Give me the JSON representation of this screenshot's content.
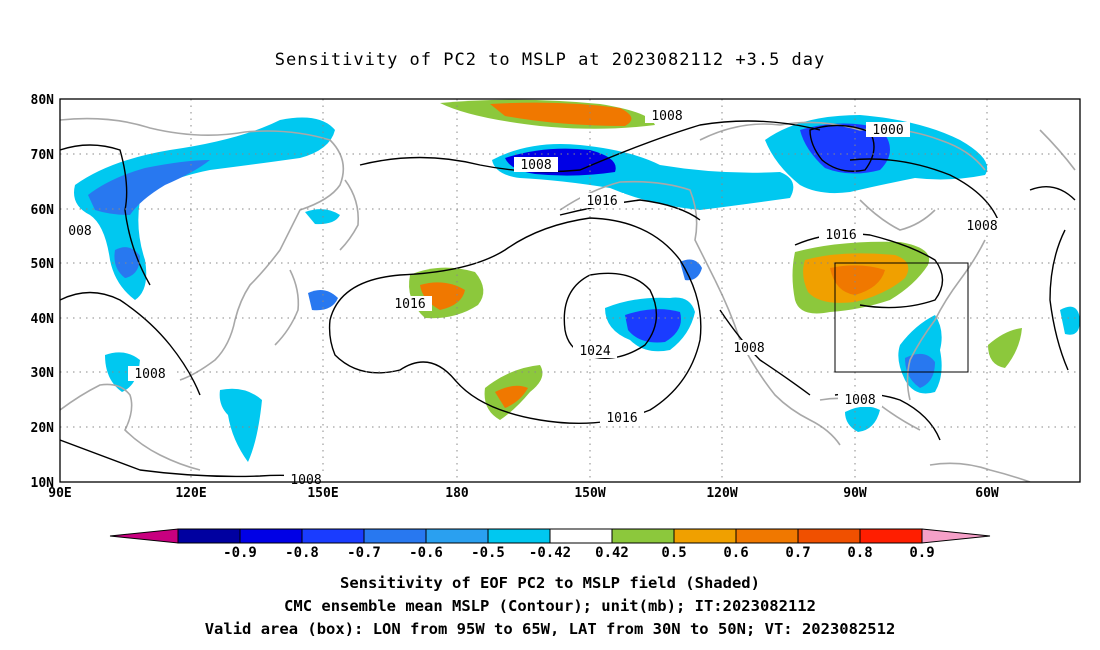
{
  "title": "Sensitivity of PC2 to MSLP at 2023082112 +3.5 day",
  "map": {
    "lat_labels": [
      "80N",
      "70N",
      "60N",
      "50N",
      "40N",
      "30N",
      "20N",
      "10N"
    ],
    "lon_labels": [
      "90E",
      "120E",
      "150E",
      "180",
      "150W",
      "120W",
      "90W",
      "60W"
    ],
    "valid_box": {
      "lon_from": "95W",
      "lon_to": "65W",
      "lat_from": "30N",
      "lat_to": "50N"
    },
    "contour_labels": [
      "1008",
      "1008",
      "1000",
      "1008",
      "1016",
      "1016",
      "1016",
      "1024",
      "1008",
      "1008",
      "1016",
      "008",
      "1008",
      "1008"
    ]
  },
  "colorbar": {
    "labels": [
      "-0.9",
      "-0.8",
      "-0.7",
      "-0.6",
      "-0.5",
      "-0.42",
      "0.42",
      "0.5",
      "0.6",
      "0.7",
      "0.8",
      "0.9"
    ],
    "colors": [
      "#c8007f",
      "#0000a0",
      "#0000e6",
      "#1a3cff",
      "#2878f0",
      "#2aa0f0",
      "#00c8f0",
      "#ffffff",
      "#8cc83c",
      "#f0a000",
      "#f07800",
      "#f05000",
      "#ff1e00",
      "#f5a0c8"
    ]
  },
  "captions": {
    "line1": "Sensitivity of EOF PC2 to MSLP field (Shaded)",
    "line2": "CMC ensemble mean MSLP (Contour); unit(mb); IT:2023082112",
    "line3": "Valid area (box): LON from 95W to 65W, LAT from 30N to 50N; VT: 2023082512"
  }
}
